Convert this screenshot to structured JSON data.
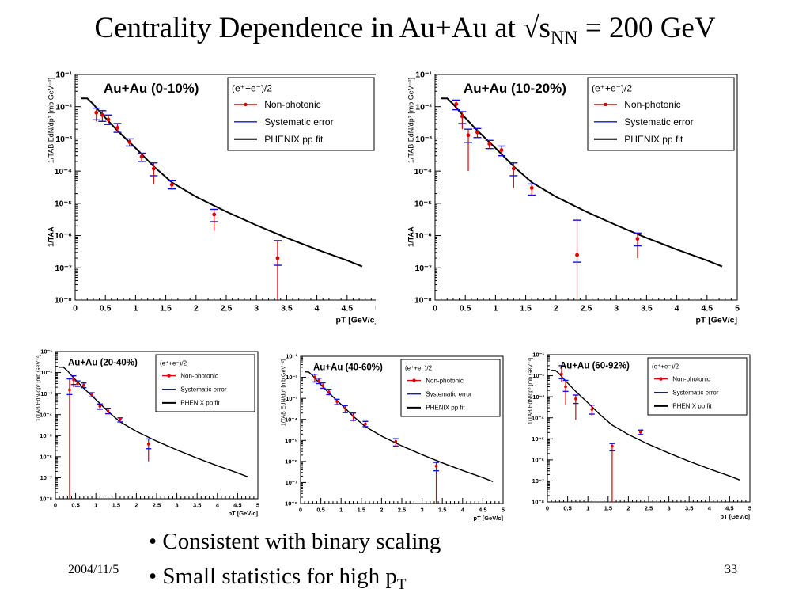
{
  "slide": {
    "title_pre": "Centrality Dependence in Au+Au at √s",
    "title_sub": "NN",
    "title_post": " = 200 GeV",
    "bullets": [
      {
        "text": "Consistent with binary scaling",
        "sub": ""
      },
      {
        "text": "Small statistics for high p",
        "sub": "T"
      }
    ],
    "date": "2004/11/5",
    "page": "33"
  },
  "legend": {
    "header": "(e⁺+e⁻)/2",
    "items": [
      "Non-photonic",
      "Systematic error",
      "PHENIX pp fit"
    ]
  },
  "colors": {
    "data": "#e00000",
    "syst": "#1010e0",
    "fit": "#000000"
  },
  "chart_data": [
    {
      "type": "scatter",
      "title": "Au+Au (0-10%)",
      "xlabel": "pT [GeV/c]",
      "ylabel": "1/TAB EdN/dp³ [mb GeV⁻²]",
      "ylabel_extra": "1/TAA",
      "xlim": [
        0,
        5
      ],
      "ylim": [
        1e-08,
        0.1
      ],
      "yscale": "log",
      "xticks": [
        "0",
        "0.5",
        "1",
        "1.5",
        "2",
        "2.5",
        "3",
        "3.5",
        "4",
        "4.5",
        "5"
      ],
      "yticks": [
        "10⁻⁸",
        "10⁻⁷",
        "10⁻⁶",
        "10⁻⁵",
        "10⁻⁴",
        "10⁻³",
        "10⁻²",
        "10⁻¹"
      ],
      "series": [
        {
          "name": "Non-photonic",
          "points": [
            {
              "x": 0.35,
              "y": 0.0065,
              "lo": 0.0035,
              "hi": 0.009
            },
            {
              "x": 0.45,
              "y": 0.0055,
              "lo": 0.0035,
              "hi": 0.0075
            },
            {
              "x": 0.55,
              "y": 0.004,
              "lo": 0.0028,
              "hi": 0.0055
            },
            {
              "x": 0.7,
              "y": 0.0022,
              "lo": 0.0016,
              "hi": 0.003
            },
            {
              "x": 0.9,
              "y": 0.0008,
              "lo": 0.0006,
              "hi": 0.001
            },
            {
              "x": 1.1,
              "y": 0.00028,
              "lo": 0.0002,
              "hi": 0.00036
            },
            {
              "x": 1.3,
              "y": 0.00012,
              "lo": 4e-05,
              "hi": 0.00018
            },
            {
              "x": 1.6,
              "y": 3.8e-05,
              "lo": 2.8e-05,
              "hi": 5e-05
            },
            {
              "x": 2.3,
              "y": 4.5e-06,
              "lo": 1.4e-06,
              "hi": 6.5e-06
            },
            {
              "x": 3.35,
              "y": 2e-07,
              "lo": 1e-08,
              "hi": 7e-07
            }
          ]
        },
        {
          "name": "PHENIX pp fit",
          "line": [
            [
              0.1,
              0.018
            ],
            [
              0.2,
              0.018
            ],
            [
              0.3,
              0.012
            ],
            [
              0.4,
              0.0072
            ],
            [
              0.5,
              0.0045
            ],
            [
              0.7,
              0.0018
            ],
            [
              1.0,
              0.00052
            ],
            [
              1.3,
              0.00014
            ],
            [
              1.6,
              4.5e-05
            ],
            [
              2.0,
              1.6e-05
            ],
            [
              2.5,
              5.5e-06
            ],
            [
              3.0,
              2.1e-06
            ],
            [
              3.5,
              8.5e-07
            ],
            [
              4.0,
              3.7e-07
            ],
            [
              4.5,
              1.7e-07
            ],
            [
              4.75,
              1.1e-07
            ]
          ]
        }
      ]
    },
    {
      "type": "scatter",
      "title": "Au+Au (10-20%)",
      "xlabel": "pT [GeV/c]",
      "ylabel": "1/TAB EdN/dp³ [mb GeV⁻²]",
      "ylabel_extra": "1/TAA",
      "xlim": [
        0,
        5
      ],
      "ylim": [
        1e-08,
        0.1
      ],
      "yscale": "log",
      "xticks": [
        "0",
        "0.5",
        "1",
        "1.5",
        "2",
        "2.5",
        "3",
        "3.5",
        "4",
        "4.5",
        "5"
      ],
      "yticks": [
        "10⁻⁸",
        "10⁻⁷",
        "10⁻⁶",
        "10⁻⁵",
        "10⁻⁴",
        "10⁻³",
        "10⁻²",
        "10⁻¹"
      ],
      "series": [
        {
          "name": "Non-photonic",
          "points": [
            {
              "x": 0.35,
              "y": 0.012,
              "lo": 0.008,
              "hi": 0.016
            },
            {
              "x": 0.45,
              "y": 0.005,
              "lo": 0.002,
              "hi": 0.007
            },
            {
              "x": 0.55,
              "y": 0.0013,
              "lo": 0.0001,
              "hi": 0.002
            },
            {
              "x": 0.7,
              "y": 0.0016,
              "lo": 0.0011,
              "hi": 0.0021
            },
            {
              "x": 0.9,
              "y": 0.0007,
              "lo": 0.0005,
              "hi": 0.0009
            },
            {
              "x": 1.1,
              "y": 0.00045,
              "lo": 0.0003,
              "hi": 0.0006
            },
            {
              "x": 1.3,
              "y": 0.00012,
              "lo": 3e-05,
              "hi": 0.00018
            },
            {
              "x": 1.6,
              "y": 3e-05,
              "lo": 1.8e-05,
              "hi": 4e-05
            },
            {
              "x": 2.35,
              "y": 2.5e-07,
              "lo": 1e-08,
              "hi": 3e-06
            },
            {
              "x": 3.35,
              "y": 8e-07,
              "lo": 2e-07,
              "hi": 1.2e-06
            }
          ]
        },
        {
          "name": "PHENIX pp fit",
          "line": [
            [
              0.1,
              0.018
            ],
            [
              0.2,
              0.018
            ],
            [
              0.3,
              0.012
            ],
            [
              0.4,
              0.0072
            ],
            [
              0.5,
              0.0045
            ],
            [
              0.7,
              0.0018
            ],
            [
              1.0,
              0.00052
            ],
            [
              1.3,
              0.00014
            ],
            [
              1.6,
              4.5e-05
            ],
            [
              2.0,
              1.6e-05
            ],
            [
              2.5,
              5.5e-06
            ],
            [
              3.0,
              2.1e-06
            ],
            [
              3.5,
              8.5e-07
            ],
            [
              4.0,
              3.7e-07
            ],
            [
              4.5,
              1.7e-07
            ],
            [
              4.75,
              1.1e-07
            ]
          ]
        }
      ]
    },
    {
      "type": "scatter",
      "title": "Au+Au (20-40%)",
      "xlabel": "pT [GeV/c]",
      "ylabel": "1/TAB EdN/dp³ [mb GeV⁻²]",
      "xlim": [
        0,
        5
      ],
      "ylim": [
        1e-08,
        0.1
      ],
      "yscale": "log",
      "xticks": [
        "0",
        "0.5",
        "1",
        "1.5",
        "2",
        "2.5",
        "3",
        "3.5",
        "4",
        "4.5",
        "5"
      ],
      "yticks": [
        "10⁻⁸",
        "10⁻⁷",
        "10⁻⁶",
        "10⁻⁵",
        "10⁻⁴",
        "10⁻³",
        "10⁻²",
        "10⁻¹"
      ],
      "series": [
        {
          "name": "Non-photonic",
          "points": [
            {
              "x": 0.35,
              "y": 0.0015,
              "lo": 1e-08,
              "hi": 0.005
            },
            {
              "x": 0.45,
              "y": 0.0045,
              "lo": 0.002,
              "hi": 0.007
            },
            {
              "x": 0.55,
              "y": 0.003,
              "lo": 0.0022,
              "hi": 0.004
            },
            {
              "x": 0.7,
              "y": 0.0025,
              "lo": 0.0019,
              "hi": 0.0032
            },
            {
              "x": 0.9,
              "y": 0.0009,
              "lo": 0.0007,
              "hi": 0.0011
            },
            {
              "x": 1.1,
              "y": 0.00025,
              "lo": 0.00018,
              "hi": 0.00032
            },
            {
              "x": 1.3,
              "y": 0.00015,
              "lo": 0.00011,
              "hi": 0.0002
            },
            {
              "x": 1.6,
              "y": 6e-05,
              "lo": 4.5e-05,
              "hi": 7e-05
            },
            {
              "x": 2.3,
              "y": 4e-06,
              "lo": 6e-07,
              "hi": 7e-06
            }
          ]
        },
        {
          "name": "PHENIX pp fit",
          "line": [
            [
              0.1,
              0.018
            ],
            [
              0.2,
              0.018
            ],
            [
              0.3,
              0.012
            ],
            [
              0.4,
              0.0072
            ],
            [
              0.5,
              0.0045
            ],
            [
              0.7,
              0.0018
            ],
            [
              1.0,
              0.00052
            ],
            [
              1.3,
              0.00014
            ],
            [
              1.6,
              4.5e-05
            ],
            [
              2.0,
              1.6e-05
            ],
            [
              2.5,
              5.5e-06
            ],
            [
              3.0,
              2.1e-06
            ],
            [
              3.5,
              8.5e-07
            ],
            [
              4.0,
              3.7e-07
            ],
            [
              4.5,
              1.7e-07
            ],
            [
              4.75,
              1.1e-07
            ]
          ]
        }
      ]
    },
    {
      "type": "scatter",
      "title": "Au+Au (40-60%)",
      "xlabel": "pT [GeV/c]",
      "ylabel": "1/TAB EdN/dp³ [mb GeV⁻²]",
      "xlim": [
        0,
        5
      ],
      "ylim": [
        1e-08,
        0.1
      ],
      "yscale": "log",
      "xticks": [
        "0",
        "0.5",
        "1",
        "1.5",
        "2",
        "2.5",
        "3",
        "3.5",
        "4",
        "4.5",
        "5"
      ],
      "yticks": [
        "10⁻⁸",
        "10⁻⁷",
        "10⁻⁶",
        "10⁻⁵",
        "10⁻⁴",
        "10⁻³",
        "10⁻²",
        "10⁻¹"
      ],
      "series": [
        {
          "name": "Non-photonic",
          "points": [
            {
              "x": 0.35,
              "y": 0.01,
              "lo": 0.006,
              "hi": 0.014
            },
            {
              "x": 0.45,
              "y": 0.007,
              "lo": 0.005,
              "hi": 0.009
            },
            {
              "x": 0.55,
              "y": 0.004,
              "lo": 0.003,
              "hi": 0.0055
            },
            {
              "x": 0.7,
              "y": 0.002,
              "lo": 0.0015,
              "hi": 0.0027
            },
            {
              "x": 0.9,
              "y": 0.0007,
              "lo": 0.0005,
              "hi": 0.0009
            },
            {
              "x": 1.1,
              "y": 0.00035,
              "lo": 0.0002,
              "hi": 0.00045
            },
            {
              "x": 1.3,
              "y": 0.00015,
              "lo": 8e-05,
              "hi": 0.0002
            },
            {
              "x": 1.6,
              "y": 6e-05,
              "lo": 4.5e-05,
              "hi": 8e-05
            },
            {
              "x": 2.35,
              "y": 9e-06,
              "lo": 5e-06,
              "hi": 1.2e-05
            },
            {
              "x": 3.35,
              "y": 6e-07,
              "lo": 1e-08,
              "hi": 9e-07
            }
          ]
        },
        {
          "name": "PHENIX pp fit",
          "line": [
            [
              0.1,
              0.018
            ],
            [
              0.2,
              0.018
            ],
            [
              0.3,
              0.012
            ],
            [
              0.4,
              0.0072
            ],
            [
              0.5,
              0.0045
            ],
            [
              0.7,
              0.0018
            ],
            [
              1.0,
              0.00052
            ],
            [
              1.3,
              0.00014
            ],
            [
              1.6,
              4.5e-05
            ],
            [
              2.0,
              1.6e-05
            ],
            [
              2.5,
              5.5e-06
            ],
            [
              3.0,
              2.1e-06
            ],
            [
              3.5,
              8.5e-07
            ],
            [
              4.0,
              3.7e-07
            ],
            [
              4.5,
              1.7e-07
            ],
            [
              4.75,
              1.1e-07
            ]
          ]
        }
      ]
    },
    {
      "type": "scatter",
      "title": "Au+Au (60-92%)",
      "xlabel": "pT [GeV/c]",
      "ylabel": "1/TAB EdN/dp³ [mb GeV⁻²]",
      "xlim": [
        0,
        5
      ],
      "ylim": [
        1e-08,
        0.1
      ],
      "yscale": "log",
      "xticks": [
        "0",
        "0.5",
        "1",
        "1.5",
        "2",
        "2.5",
        "3",
        "3.5",
        "4",
        "4.5",
        "5"
      ],
      "yticks": [
        "10⁻⁸",
        "10⁻⁷",
        "10⁻⁶",
        "10⁻⁵",
        "10⁻⁴",
        "10⁻³",
        "10⁻²",
        "10⁻¹"
      ],
      "series": [
        {
          "name": "Non-photonic",
          "points": [
            {
              "x": 0.35,
              "y": 0.012,
              "lo": 0.005,
              "hi": 0.03
            },
            {
              "x": 0.45,
              "y": 0.003,
              "lo": 0.0004,
              "hi": 0.006
            },
            {
              "x": 0.7,
              "y": 0.0008,
              "lo": 8e-05,
              "hi": 0.0012
            },
            {
              "x": 1.1,
              "y": 0.00025,
              "lo": 0.00012,
              "hi": 0.0004
            },
            {
              "x": 1.6,
              "y": 4.5e-06,
              "lo": 1e-08,
              "hi": 6e-06
            },
            {
              "x": 2.3,
              "y": 2.1e-05,
              "lo": 1.6e-05,
              "hi": 2.6e-05
            }
          ]
        },
        {
          "name": "PHENIX pp fit",
          "line": [
            [
              0.1,
              0.018
            ],
            [
              0.2,
              0.018
            ],
            [
              0.3,
              0.012
            ],
            [
              0.4,
              0.0072
            ],
            [
              0.5,
              0.0045
            ],
            [
              0.7,
              0.0018
            ],
            [
              1.0,
              0.00052
            ],
            [
              1.3,
              0.00014
            ],
            [
              1.6,
              4.5e-05
            ],
            [
              2.0,
              1.6e-05
            ],
            [
              2.5,
              5.5e-06
            ],
            [
              3.0,
              2.1e-06
            ],
            [
              3.5,
              8.5e-07
            ],
            [
              4.0,
              3.7e-07
            ],
            [
              4.5,
              1.7e-07
            ],
            [
              4.75,
              1.1e-07
            ]
          ]
        }
      ]
    }
  ]
}
